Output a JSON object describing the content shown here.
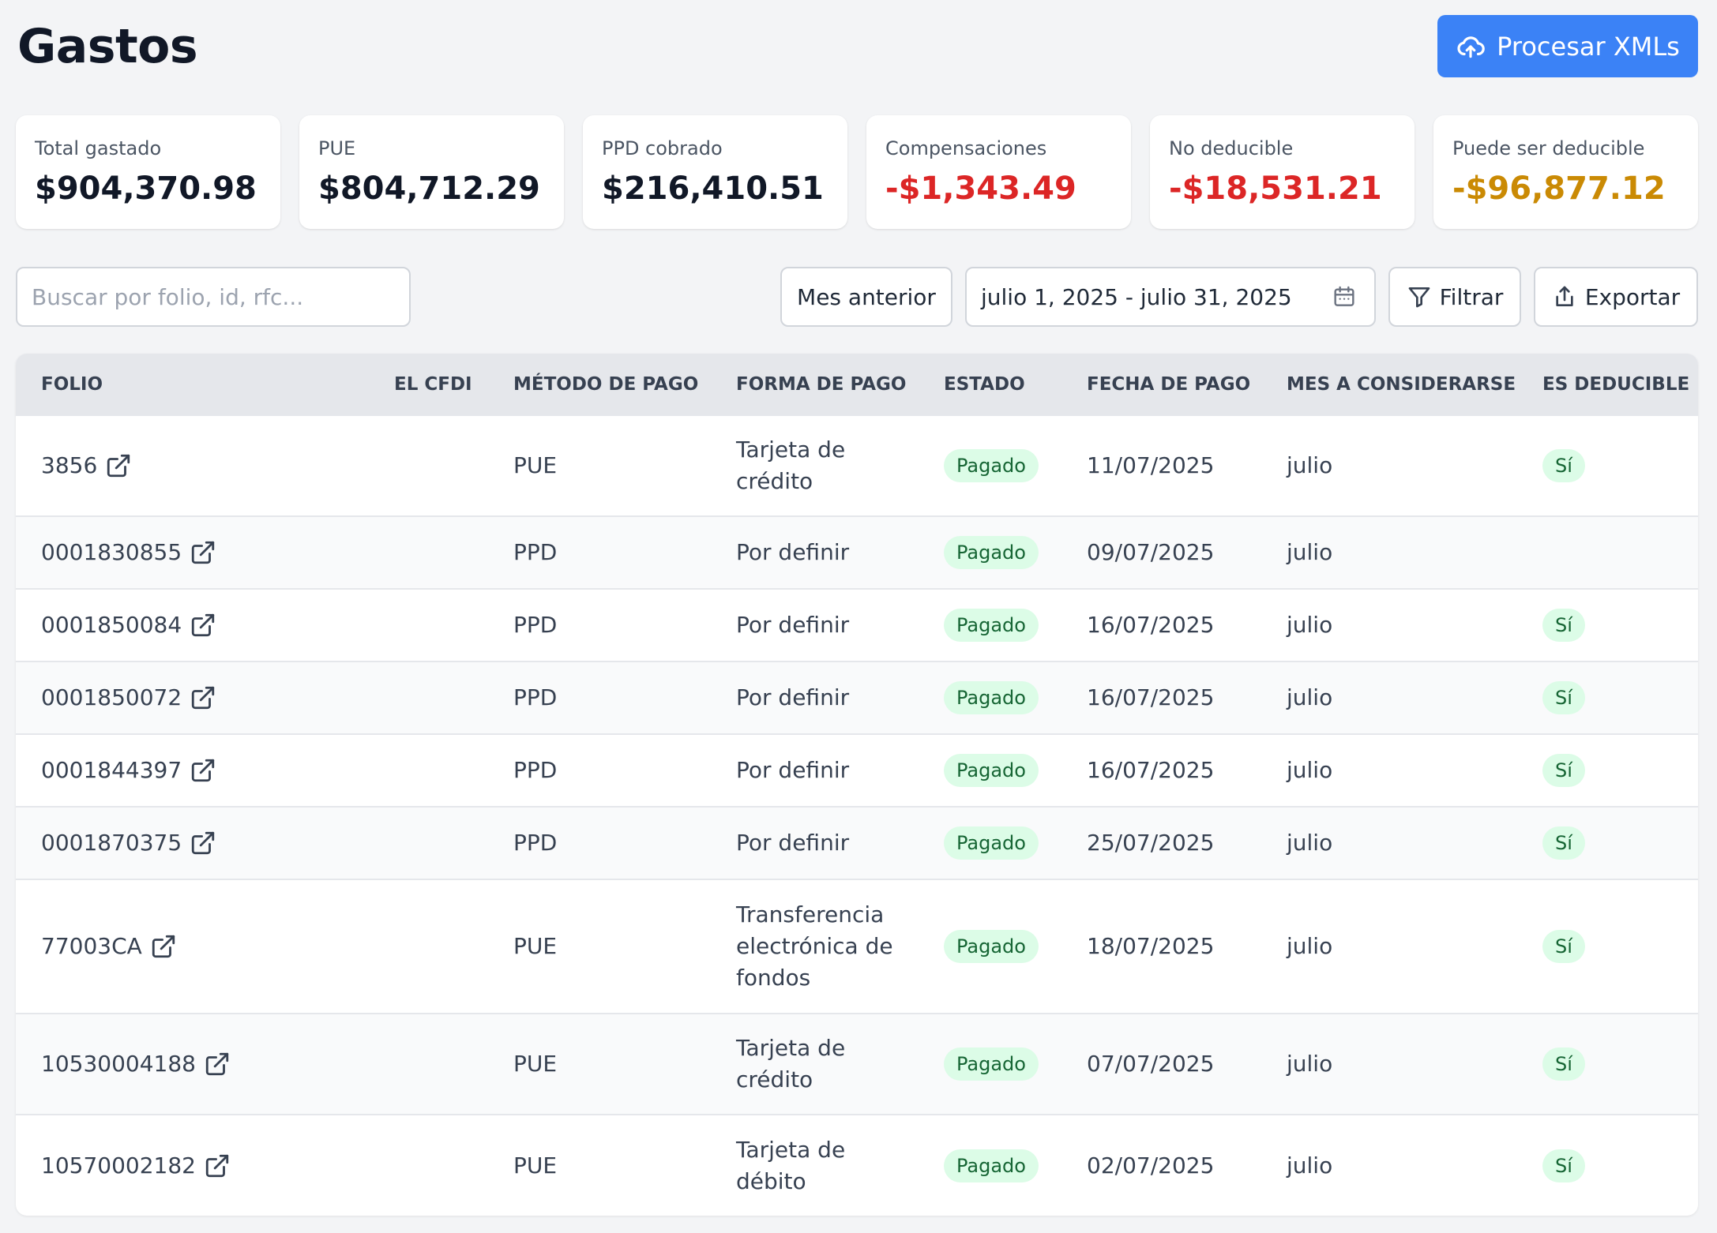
{
  "header": {
    "title": "Gastos",
    "process_label": "Procesar XMLs"
  },
  "stats": [
    {
      "label": "Total gastado",
      "value": "$904,370.98",
      "tone": "default"
    },
    {
      "label": "PUE",
      "value": "$804,712.29",
      "tone": "default"
    },
    {
      "label": "PPD cobrado",
      "value": "$216,410.51",
      "tone": "default"
    },
    {
      "label": "Compensaciones",
      "value": "-$1,343.49",
      "tone": "negative"
    },
    {
      "label": "No deducible",
      "value": "-$18,531.21",
      "tone": "negative"
    },
    {
      "label": "Puede ser deducible",
      "value": "-$96,877.12",
      "tone": "warning"
    }
  ],
  "toolbar": {
    "search_placeholder": "Buscar por folio, id, rfc...",
    "search_value": "",
    "prev_month_label": "Mes anterior",
    "date_range": "julio 1, 2025 - julio 31, 2025",
    "filter_label": "Filtrar",
    "export_label": "Exportar"
  },
  "table": {
    "columns": [
      "FOLIO",
      "EL CFDI",
      "MÉTODO DE PAGO",
      "FORMA DE PAGO",
      "ESTADO",
      "FECHA DE PAGO",
      "MES A CONSIDERARSE",
      "ES DEDUCIBLE"
    ],
    "rows": [
      {
        "folio": "3856",
        "cfdi": "",
        "metodo": "PUE",
        "forma": "Tarjeta de crédito",
        "estado": "Pagado",
        "fecha": "11/07/2025",
        "mes": "julio",
        "deducible": "Sí"
      },
      {
        "folio": "0001830855",
        "cfdi": "",
        "metodo": "PPD",
        "forma": "Por definir",
        "estado": "Pagado",
        "fecha": "09/07/2025",
        "mes": "julio",
        "deducible": ""
      },
      {
        "folio": "0001850084",
        "cfdi": "",
        "metodo": "PPD",
        "forma": "Por definir",
        "estado": "Pagado",
        "fecha": "16/07/2025",
        "mes": "julio",
        "deducible": "Sí"
      },
      {
        "folio": "0001850072",
        "cfdi": "",
        "metodo": "PPD",
        "forma": "Por definir",
        "estado": "Pagado",
        "fecha": "16/07/2025",
        "mes": "julio",
        "deducible": "Sí"
      },
      {
        "folio": "0001844397",
        "cfdi": "",
        "metodo": "PPD",
        "forma": "Por definir",
        "estado": "Pagado",
        "fecha": "16/07/2025",
        "mes": "julio",
        "deducible": "Sí"
      },
      {
        "folio": "0001870375",
        "cfdi": "",
        "metodo": "PPD",
        "forma": "Por definir",
        "estado": "Pagado",
        "fecha": "25/07/2025",
        "mes": "julio",
        "deducible": "Sí"
      },
      {
        "folio": "77003CA",
        "cfdi": "",
        "metodo": "PUE",
        "forma": "Transferencia electrónica de fondos",
        "estado": "Pagado",
        "fecha": "18/07/2025",
        "mes": "julio",
        "deducible": "Sí"
      },
      {
        "folio": "10530004188",
        "cfdi": "",
        "metodo": "PUE",
        "forma": "Tarjeta de crédito",
        "estado": "Pagado",
        "fecha": "07/07/2025",
        "mes": "julio",
        "deducible": "Sí"
      },
      {
        "folio": "10570002182",
        "cfdi": "",
        "metodo": "PUE",
        "forma": "Tarjeta de débito",
        "estado": "Pagado",
        "fecha": "02/07/2025",
        "mes": "julio",
        "deducible": "Sí"
      }
    ]
  },
  "icons": {
    "process": "cloud-upload-icon",
    "date_range": "calendar-icon",
    "filter": "filter-icon",
    "export": "share-upload-icon",
    "folio_link": "external-link-icon"
  },
  "colors": {
    "accent": "#3b82f6",
    "negative": "#dc2626",
    "warning": "#ca8a04",
    "badge_bg": "#dcfce7",
    "badge_text": "#166534"
  }
}
